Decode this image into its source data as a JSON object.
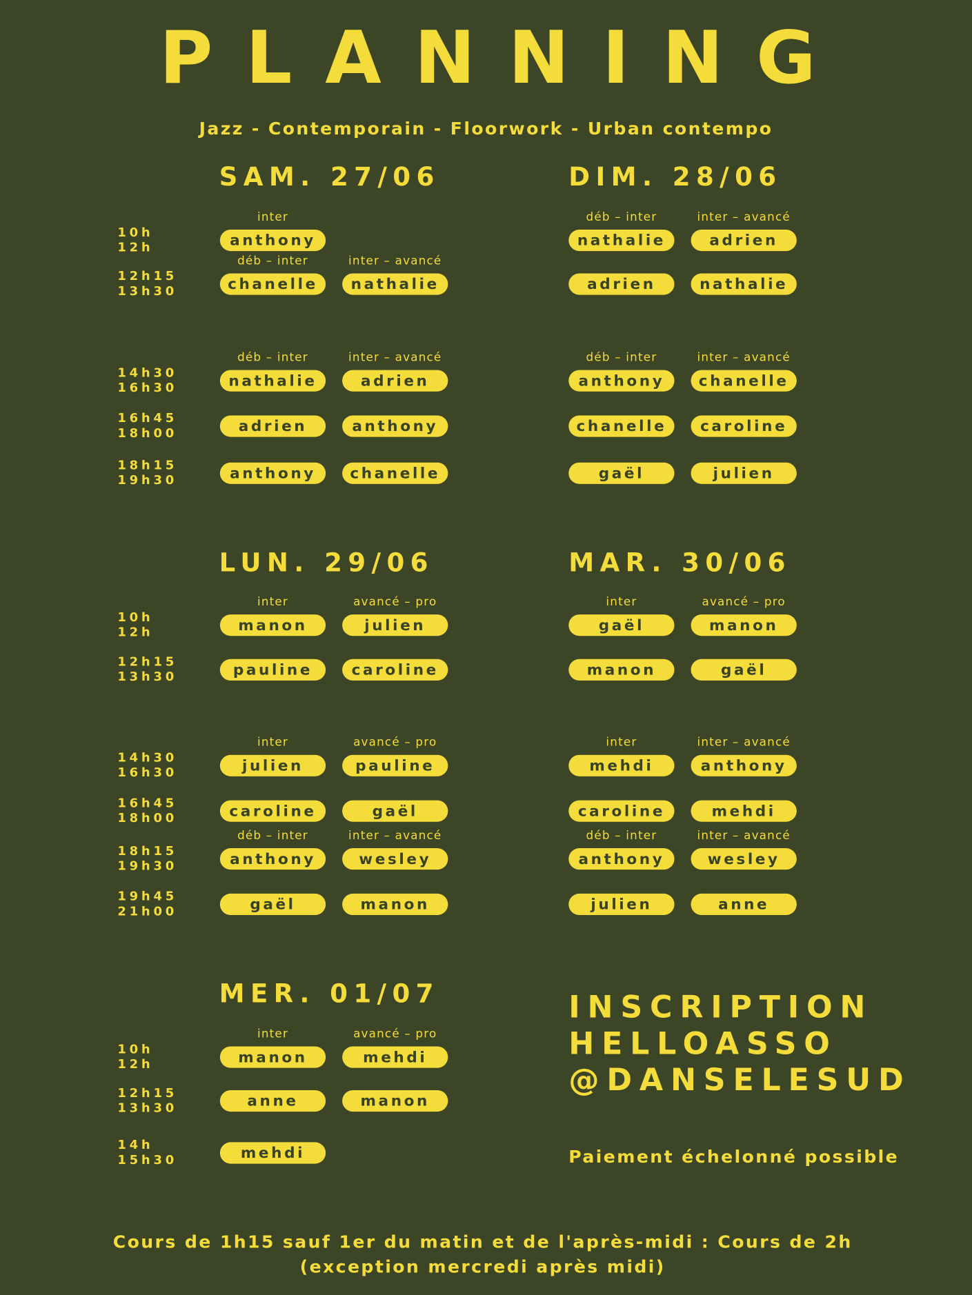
{
  "header": {
    "title": "PLANNING",
    "subtitle": "Jazz - Contemporain - Floorwork - Urban contempo"
  },
  "sections": [
    {
      "times": [
        [
          "10h",
          "12h"
        ],
        [
          "12h15",
          "13h30"
        ],
        [
          "14h30",
          "16h30"
        ],
        [
          "16h45",
          "18h00"
        ],
        [
          "18h15",
          "19h30"
        ]
      ],
      "days": [
        {
          "label": "SAM. 27/06",
          "slots": [
            {
              "levels": [
                "inter",
                null
              ],
              "names": [
                "anthony",
                null
              ]
            },
            {
              "levels": [
                "déb – inter",
                "inter – avancé"
              ],
              "names": [
                "chanelle",
                "nathalie"
              ]
            },
            {
              "levels": [
                "déb – inter",
                "inter – avancé"
              ],
              "names": [
                "nathalie",
                "adrien"
              ]
            },
            {
              "names": [
                "adrien",
                "anthony"
              ]
            },
            {
              "names": [
                "anthony",
                "chanelle"
              ]
            }
          ]
        },
        {
          "label": "DIM. 28/06",
          "slots": [
            {
              "levels": [
                "déb – inter",
                "inter – avancé"
              ],
              "names": [
                "nathalie",
                "adrien"
              ]
            },
            {
              "names": [
                "adrien",
                "nathalie"
              ]
            },
            {
              "levels": [
                "déb – inter",
                "inter – avancé"
              ],
              "names": [
                "anthony",
                "chanelle"
              ]
            },
            {
              "names": [
                "chanelle",
                "caroline"
              ]
            },
            {
              "names": [
                "gaël",
                "julien"
              ]
            }
          ]
        }
      ]
    },
    {
      "times": [
        [
          "10h",
          "12h"
        ],
        [
          "12h15",
          "13h30"
        ],
        [
          "14h30",
          "16h30"
        ],
        [
          "16h45",
          "18h00"
        ],
        [
          "18h15",
          "19h30"
        ],
        [
          "19h45",
          "21h00"
        ]
      ],
      "days": [
        {
          "label": "LUN. 29/06",
          "slots": [
            {
              "levels": [
                "inter",
                "avancé – pro"
              ],
              "names": [
                "manon",
                "julien"
              ]
            },
            {
              "names": [
                "pauline",
                "caroline"
              ]
            },
            {
              "levels": [
                "inter",
                "avancé – pro"
              ],
              "names": [
                "julien",
                "pauline"
              ]
            },
            {
              "names": [
                "caroline",
                "gaël"
              ]
            },
            {
              "levels": [
                "déb – inter",
                "inter – avancé"
              ],
              "names": [
                "anthony",
                "wesley"
              ]
            },
            {
              "names": [
                "gaël",
                "manon"
              ]
            }
          ]
        },
        {
          "label": "MAR. 30/06",
          "slots": [
            {
              "levels": [
                "inter",
                "avancé – pro"
              ],
              "names": [
                "gaël",
                "manon"
              ]
            },
            {
              "names": [
                "manon",
                "gaël"
              ]
            },
            {
              "levels": [
                "inter",
                "inter – avancé"
              ],
              "names": [
                "mehdi",
                "anthony"
              ]
            },
            {
              "names": [
                "caroline",
                "mehdi"
              ]
            },
            {
              "levels": [
                "déb – inter",
                "inter – avancé"
              ],
              "names": [
                "anthony",
                "wesley"
              ]
            },
            {
              "names": [
                "julien",
                "anne"
              ]
            }
          ]
        }
      ]
    },
    {
      "times": [
        [
          "10h",
          "12h"
        ],
        [
          "12h15",
          "13h30"
        ],
        [
          "14h",
          "15h30"
        ]
      ],
      "days": [
        {
          "label": "MER. 01/07",
          "slots": [
            {
              "levels": [
                "inter",
                "avancé – pro"
              ],
              "names": [
                "manon",
                "mehdi"
              ]
            },
            {
              "names": [
                "anne",
                "manon"
              ]
            },
            {
              "names": [
                "mehdi",
                null
              ]
            }
          ]
        }
      ]
    }
  ],
  "inscription": {
    "lines": [
      "INSCRIPTION",
      "HELLOASSO",
      "@DANSELESUD"
    ],
    "note": "Paiement échelonné possible"
  },
  "footer": [
    "Cours de 1h15 sauf 1er du matin et de l'après-midi : Cours de 2h",
    "(exception mercredi après midi)"
  ]
}
